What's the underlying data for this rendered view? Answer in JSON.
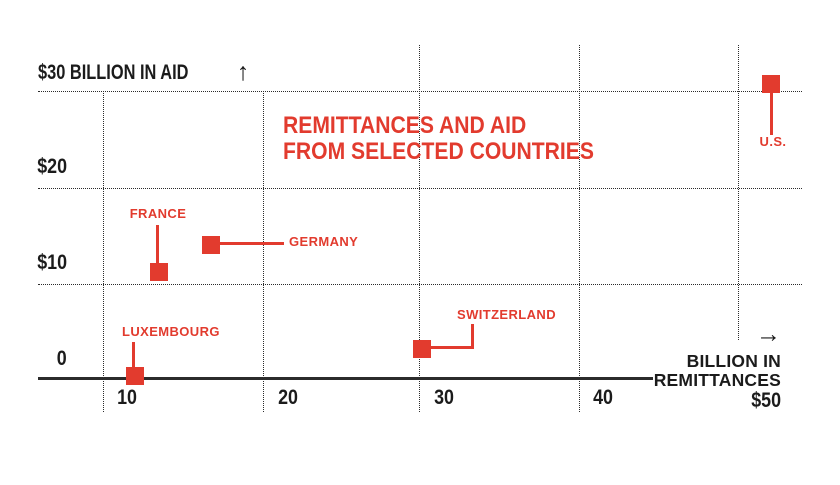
{
  "colors": {
    "accent_red": "#e23b2e",
    "ink": "#1b1b1b",
    "grid": "#2b2b2b"
  },
  "icons": {
    "up_arrow": "↑",
    "right_arrow": "→"
  },
  "chart_data": {
    "type": "scatter",
    "title_lines": [
      "REMITTANCES AND AID",
      "FROM SELECTED COUNTRIES"
    ],
    "x_axis": {
      "unit_label_lines": [
        "BILLION IN",
        "REMITTANCES"
      ],
      "end_tick_label": "$50",
      "ticks": [
        10,
        20,
        30,
        40,
        50
      ],
      "tick_labels": [
        "10",
        "20",
        "30",
        "40"
      ],
      "range": [
        10,
        50
      ],
      "grid": "dotted"
    },
    "y_axis": {
      "top_label": "$30 BILLION IN AID",
      "ticks": [
        30,
        20,
        10,
        0
      ],
      "tick_labels": [
        "$20",
        "$10",
        "0"
      ],
      "range": [
        0,
        30
      ],
      "grid": "dotted"
    },
    "points": [
      {
        "name": "U.S.",
        "x": 52.1,
        "y": 30.8
      },
      {
        "name": "GERMANY",
        "x": 16.8,
        "y": 14.1
      },
      {
        "name": "FRANCE",
        "x": 13.5,
        "y": 11.2
      },
      {
        "name": "SWITZERLAND",
        "x": 30.1,
        "y": 3.2
      },
      {
        "name": "LUXEMBOURG",
        "x": 12.0,
        "y": 0.4
      }
    ]
  }
}
